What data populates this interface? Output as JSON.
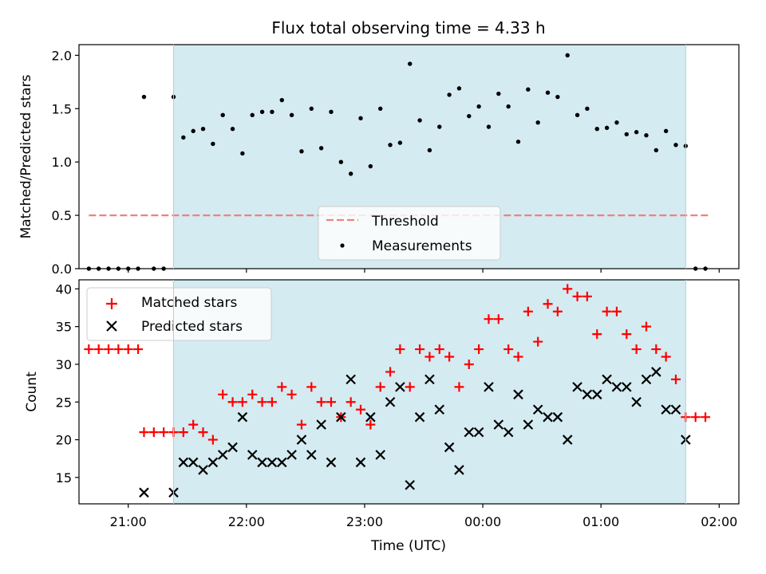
{
  "chart_data": [
    {
      "type": "scatter",
      "title": "Flux total observing time = 4.33 h",
      "xlabel": "",
      "ylabel": "Matched/Predicted stars",
      "xlim": [
        "20:35",
        "02:10"
      ],
      "ylim": [
        0,
        2.1
      ],
      "yticks": [
        "0.0",
        "0.5",
        "1.0",
        "1.5",
        "2.0"
      ],
      "grid": false,
      "legend_position": "bottom-center",
      "shaded_region": {
        "x_start": "21:23",
        "x_end": "01:43",
        "color": "#d4ebf1"
      },
      "threshold": {
        "name": "Threshold",
        "y": 0.5,
        "x_start": "20:40",
        "x_end": "01:55",
        "color": "#f08080"
      },
      "series": [
        {
          "name": "Measurements",
          "marker": "dot",
          "color": "#000000",
          "points": [
            [
              "20:40",
              0
            ],
            [
              "20:45",
              0
            ],
            [
              "20:50",
              0
            ],
            [
              "20:55",
              0
            ],
            [
              "21:00",
              0
            ],
            [
              "21:05",
              0
            ],
            [
              "21:08",
              1.61
            ],
            [
              "21:13",
              0
            ],
            [
              "21:18",
              0
            ],
            [
              "21:23",
              1.61
            ],
            [
              "21:28",
              1.23
            ],
            [
              "21:33",
              1.29
            ],
            [
              "21:38",
              1.31
            ],
            [
              "21:43",
              1.17
            ],
            [
              "21:48",
              1.44
            ],
            [
              "21:53",
              1.31
            ],
            [
              "21:58",
              1.08
            ],
            [
              "22:03",
              1.44
            ],
            [
              "22:08",
              1.47
            ],
            [
              "22:13",
              1.47
            ],
            [
              "22:18",
              1.58
            ],
            [
              "22:23",
              1.44
            ],
            [
              "22:28",
              1.1
            ],
            [
              "22:33",
              1.5
            ],
            [
              "22:38",
              1.13
            ],
            [
              "22:43",
              1.47
            ],
            [
              "22:48",
              1.0
            ],
            [
              "22:53",
              0.89
            ],
            [
              "22:58",
              1.41
            ],
            [
              "23:03",
              0.96
            ],
            [
              "23:08",
              1.5
            ],
            [
              "23:13",
              1.16
            ],
            [
              "23:18",
              1.18
            ],
            [
              "23:23",
              1.92
            ],
            [
              "23:28",
              1.39
            ],
            [
              "23:33",
              1.11
            ],
            [
              "23:38",
              1.33
            ],
            [
              "23:43",
              1.63
            ],
            [
              "23:48",
              1.69
            ],
            [
              "23:53",
              1.43
            ],
            [
              "23:58",
              1.52
            ],
            [
              "00:03",
              1.33
            ],
            [
              "00:08",
              1.64
            ],
            [
              "00:13",
              1.52
            ],
            [
              "00:18",
              1.19
            ],
            [
              "00:23",
              1.68
            ],
            [
              "00:28",
              1.37
            ],
            [
              "00:33",
              1.65
            ],
            [
              "00:38",
              1.61
            ],
            [
              "00:43",
              2.0
            ],
            [
              "00:48",
              1.44
            ],
            [
              "00:53",
              1.5
            ],
            [
              "00:58",
              1.31
            ],
            [
              "01:03",
              1.32
            ],
            [
              "01:08",
              1.37
            ],
            [
              "01:13",
              1.26
            ],
            [
              "01:18",
              1.28
            ],
            [
              "01:23",
              1.25
            ],
            [
              "01:28",
              1.11
            ],
            [
              "01:33",
              1.29
            ],
            [
              "01:38",
              1.16
            ],
            [
              "01:43",
              1.15
            ],
            [
              "01:48",
              0
            ],
            [
              "01:53",
              0
            ]
          ]
        }
      ]
    },
    {
      "type": "scatter",
      "title": "",
      "xlabel": "Time (UTC)",
      "ylabel": "Count",
      "xlim": [
        "20:35",
        "02:10"
      ],
      "ylim": [
        11.5,
        41.2
      ],
      "xticks": [
        "21:00",
        "22:00",
        "23:00",
        "00:00",
        "01:00",
        "02:00"
      ],
      "yticks": [
        "15",
        "20",
        "25",
        "30",
        "35",
        "40"
      ],
      "grid": false,
      "legend_position": "top-left",
      "shaded_region": {
        "x_start": "21:23",
        "x_end": "01:43",
        "color": "#d4ebf1"
      },
      "series": [
        {
          "name": "Matched stars",
          "marker": "plus",
          "color": "#ff0000",
          "points": [
            [
              "20:40",
              32
            ],
            [
              "20:45",
              32
            ],
            [
              "20:50",
              32
            ],
            [
              "20:55",
              32
            ],
            [
              "21:00",
              32
            ],
            [
              "21:05",
              32
            ],
            [
              "21:08",
              21
            ],
            [
              "21:13",
              21
            ],
            [
              "21:18",
              21
            ],
            [
              "21:23",
              21
            ],
            [
              "21:28",
              21
            ],
            [
              "21:33",
              22
            ],
            [
              "21:38",
              21
            ],
            [
              "21:43",
              20
            ],
            [
              "21:48",
              26
            ],
            [
              "21:53",
              25
            ],
            [
              "21:58",
              25
            ],
            [
              "22:03",
              26
            ],
            [
              "22:08",
              25
            ],
            [
              "22:13",
              25
            ],
            [
              "22:18",
              27
            ],
            [
              "22:23",
              26
            ],
            [
              "22:28",
              22
            ],
            [
              "22:33",
              27
            ],
            [
              "22:38",
              25
            ],
            [
              "22:43",
              25
            ],
            [
              "22:48",
              23
            ],
            [
              "22:53",
              25
            ],
            [
              "22:58",
              24
            ],
            [
              "23:03",
              22
            ],
            [
              "23:08",
              27
            ],
            [
              "23:13",
              29
            ],
            [
              "23:18",
              32
            ],
            [
              "23:23",
              27
            ],
            [
              "23:28",
              32
            ],
            [
              "23:33",
              31
            ],
            [
              "23:38",
              32
            ],
            [
              "23:43",
              31
            ],
            [
              "23:48",
              27
            ],
            [
              "23:53",
              30
            ],
            [
              "23:58",
              32
            ],
            [
              "00:03",
              36
            ],
            [
              "00:08",
              36
            ],
            [
              "00:13",
              32
            ],
            [
              "00:18",
              31
            ],
            [
              "00:23",
              37
            ],
            [
              "00:28",
              33
            ],
            [
              "00:33",
              38
            ],
            [
              "00:38",
              37
            ],
            [
              "00:43",
              40
            ],
            [
              "00:48",
              39
            ],
            [
              "00:53",
              39
            ],
            [
              "00:58",
              34
            ],
            [
              "01:03",
              37
            ],
            [
              "01:08",
              37
            ],
            [
              "01:13",
              34
            ],
            [
              "01:18",
              32
            ],
            [
              "01:23",
              35
            ],
            [
              "01:28",
              32
            ],
            [
              "01:33",
              31
            ],
            [
              "01:38",
              28
            ],
            [
              "01:43",
              23
            ],
            [
              "01:48",
              23
            ],
            [
              "01:53",
              23
            ]
          ]
        },
        {
          "name": "Predicted stars",
          "marker": "x",
          "color": "#000000",
          "points": [
            [
              "21:08",
              13
            ],
            [
              "21:23",
              13
            ],
            [
              "21:28",
              17
            ],
            [
              "21:33",
              17
            ],
            [
              "21:38",
              16
            ],
            [
              "21:43",
              17
            ],
            [
              "21:48",
              18
            ],
            [
              "21:53",
              19
            ],
            [
              "21:58",
              23
            ],
            [
              "22:03",
              18
            ],
            [
              "22:08",
              17
            ],
            [
              "22:13",
              17
            ],
            [
              "22:18",
              17
            ],
            [
              "22:23",
              18
            ],
            [
              "22:28",
              20
            ],
            [
              "22:33",
              18
            ],
            [
              "22:38",
              22
            ],
            [
              "22:43",
              17
            ],
            [
              "22:48",
              23
            ],
            [
              "22:53",
              28
            ],
            [
              "22:58",
              17
            ],
            [
              "23:03",
              23
            ],
            [
              "23:08",
              18
            ],
            [
              "23:13",
              25
            ],
            [
              "23:18",
              27
            ],
            [
              "23:23",
              14
            ],
            [
              "23:28",
              23
            ],
            [
              "23:33",
              28
            ],
            [
              "23:38",
              24
            ],
            [
              "23:43",
              19
            ],
            [
              "23:48",
              16
            ],
            [
              "23:53",
              21
            ],
            [
              "23:58",
              21
            ],
            [
              "00:03",
              27
            ],
            [
              "00:08",
              22
            ],
            [
              "00:13",
              21
            ],
            [
              "00:18",
              26
            ],
            [
              "00:23",
              22
            ],
            [
              "00:28",
              24
            ],
            [
              "00:33",
              23
            ],
            [
              "00:38",
              23
            ],
            [
              "00:43",
              20
            ],
            [
              "00:48",
              27
            ],
            [
              "00:53",
              26
            ],
            [
              "00:58",
              26
            ],
            [
              "01:03",
              28
            ],
            [
              "01:08",
              27
            ],
            [
              "01:13",
              27
            ],
            [
              "01:18",
              25
            ],
            [
              "01:23",
              28
            ],
            [
              "01:28",
              29
            ],
            [
              "01:33",
              24
            ],
            [
              "01:38",
              24
            ],
            [
              "01:43",
              20
            ]
          ]
        }
      ]
    }
  ]
}
